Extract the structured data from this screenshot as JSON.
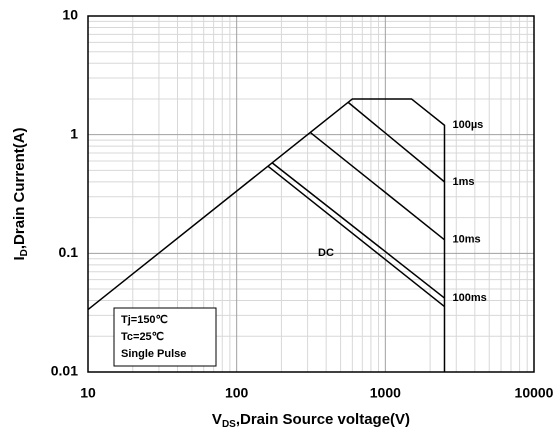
{
  "chart_data": {
    "type": "line",
    "xlabel": [
      "V",
      "DS",
      ",Drain Source voltage(V)"
    ],
    "ylabel": [
      "I",
      "D",
      ",Drain Current(A)"
    ],
    "xscale": "log",
    "yscale": "log",
    "xlim": [
      10,
      10000
    ],
    "ylim": [
      0.01,
      10
    ],
    "xticks": [
      10,
      100,
      1000,
      10000
    ],
    "yticks": [
      {
        "value": 0.01,
        "label": "0.01"
      },
      {
        "value": 0.1,
        "label": "0.1"
      },
      1,
      10
    ],
    "grid": true,
    "minor_grid": true,
    "annotation": [
      "Tj=150℃",
      "Tc=25℃",
      "Single Pulse"
    ],
    "series": [
      {
        "name": "100µs",
        "color": "#000000",
        "x": [
          10,
          600,
          1500,
          2500,
          2500
        ],
        "values": [
          0.0336,
          2,
          2,
          1.2,
          0.01
        ]
      },
      {
        "name": "1ms",
        "color": "#000000",
        "x": [
          560,
          2500
        ],
        "values": [
          1.88,
          0.4
        ]
      },
      {
        "name": "10ms",
        "color": "#000000",
        "x": [
          311,
          2500
        ],
        "values": [
          1.05,
          0.13
        ]
      },
      {
        "name": "100ms",
        "color": "#000000",
        "x": [
          173,
          2500
        ],
        "values": [
          0.58,
          0.042
        ]
      },
      {
        "name": "DC",
        "color": "#000000",
        "x": [
          162,
          2500
        ],
        "values": [
          0.544,
          0.0356
        ]
      }
    ]
  }
}
